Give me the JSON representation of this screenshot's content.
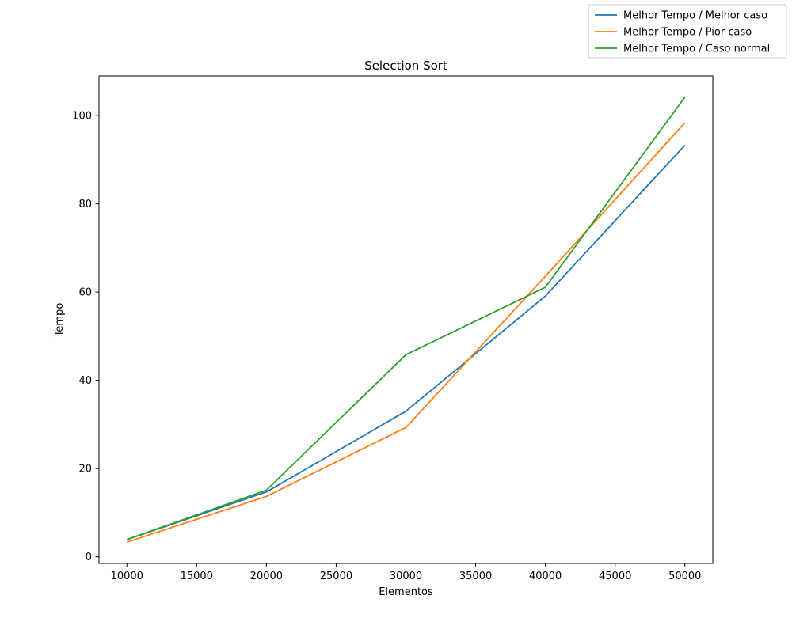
{
  "chart_data": {
    "type": "line",
    "title": "Selection Sort",
    "xlabel": "Elementos",
    "ylabel": "Tempo",
    "x": [
      10000,
      20000,
      30000,
      40000,
      50000
    ],
    "xlim": [
      8000,
      52000
    ],
    "ylim": [
      -1.5,
      109
    ],
    "xticks": [
      10000,
      15000,
      20000,
      25000,
      30000,
      35000,
      40000,
      45000,
      50000
    ],
    "yticks": [
      0,
      20,
      40,
      60,
      80,
      100
    ],
    "grid": false,
    "legend_position": "top-right",
    "series": [
      {
        "name": "Melhor Tempo / Melhor caso",
        "color": "#1f77b4",
        "values": [
          3.9,
          14.7,
          33.0,
          59.1,
          93.3
        ]
      },
      {
        "name": "Melhor Tempo / Pior caso",
        "color": "#ff7f0e",
        "values": [
          3.3,
          13.7,
          29.3,
          63.6,
          98.4
        ]
      },
      {
        "name": "Melhor Tempo / Caso normal",
        "color": "#2ca02c",
        "values": [
          3.9,
          15.1,
          45.8,
          61.1,
          104.2
        ]
      }
    ]
  }
}
